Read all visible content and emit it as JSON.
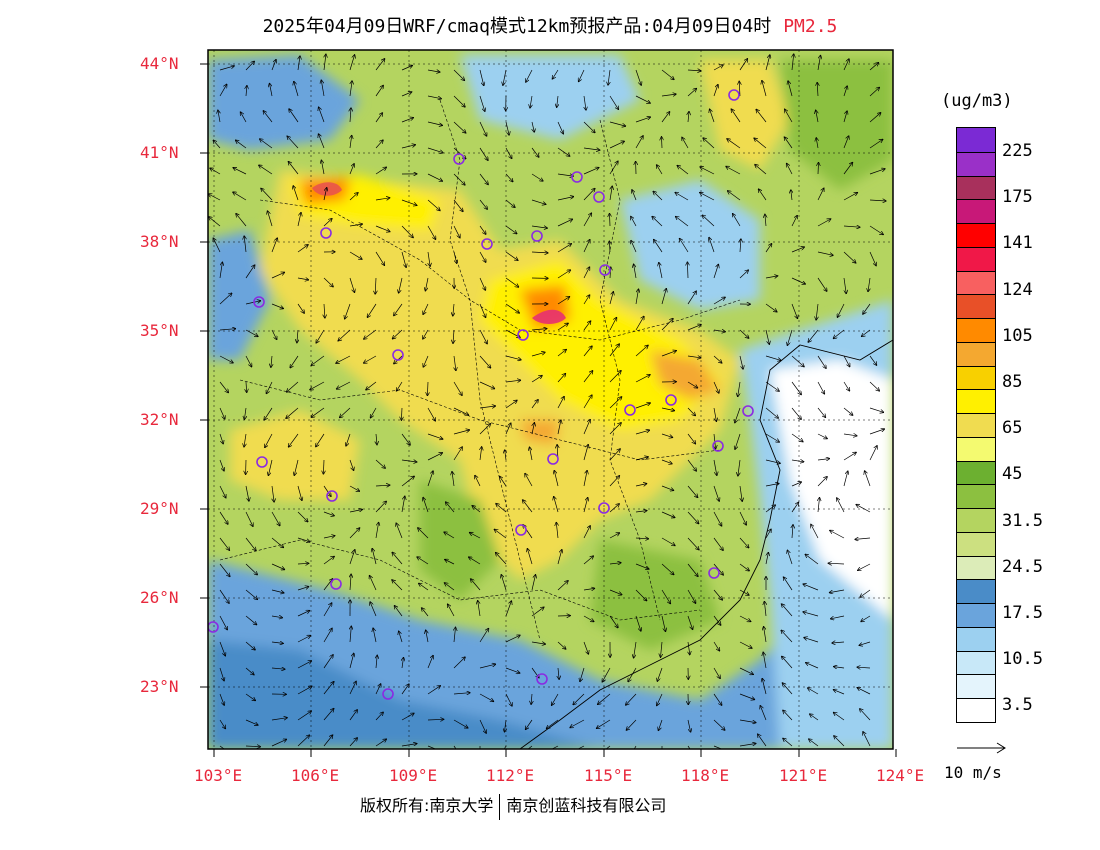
{
  "title": "2025年04月09日WRF/cmaq模式12km预报产品:04月09日04时",
  "species": "PM2.5",
  "units": "(ug/m3)",
  "legend": {
    "labels": [
      "225",
      "175",
      "141",
      "124",
      "105",
      "85",
      "65",
      "45",
      "31.5",
      "24.5",
      "17.5",
      "10.5",
      "3.5"
    ],
    "colors_top_to_bottom": [
      "#7b2ad4",
      "#9a30c8",
      "#a8305c",
      "#c81878",
      "#ff0000",
      "#f01848",
      "#f86060",
      "#e85028",
      "#ff8a00",
      "#f4a830",
      "#f8d000",
      "#fff000",
      "#f0dc50",
      "#f4fa70",
      "#6cb030",
      "#8cc040",
      "#b4d460",
      "#cce080",
      "#dcecb8",
      "#4a8cc8",
      "#6aa4dc",
      "#9cd0f0",
      "#c8e8f8",
      "#e4f4fc",
      "#ffffff"
    ]
  },
  "latitudes": [
    "44°N",
    "41°N",
    "38°N",
    "35°N",
    "32°N",
    "29°N",
    "26°N",
    "23°N"
  ],
  "longitudes": [
    "103°E",
    "106°E",
    "109°E",
    "112°E",
    "115°E",
    "118°E",
    "121°E",
    "124°E"
  ],
  "vector_reference": "10 m/s",
  "credit": [
    "版权所有:南京大学",
    "南京创蓝科技有限公司"
  ],
  "colors": {
    "axis_label": "#e8283c",
    "frame": "#000000",
    "station_marker": "#8a2be2"
  }
}
